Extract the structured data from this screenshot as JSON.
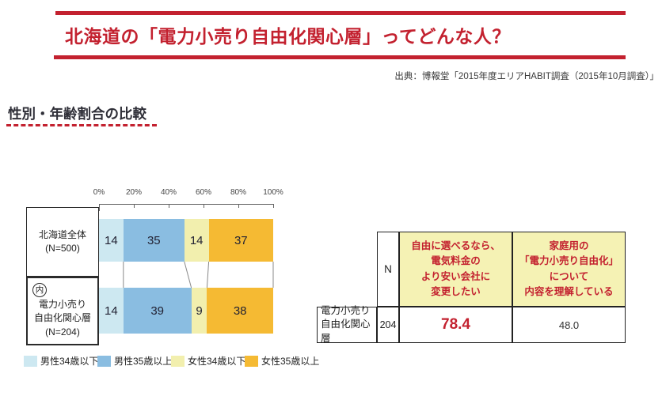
{
  "colors": {
    "accent_red": "#c3212f",
    "table_header_bg": "#f5f2b4",
    "connector_gray": "#888888"
  },
  "banner": {
    "title": "北海道の「電力小売り自由化関心層」ってどんな人？",
    "source": "出典：博報堂「2015年度エリアHABIT調査（2015年10月調査）」"
  },
  "section_heading": "性別・年齢割合の比較",
  "chart_data": {
    "type": "bar",
    "stacked": true,
    "orientation": "horizontal",
    "title": "性別・年齢割合の比較",
    "categories": [
      "北海道全体 (N=500)",
      "(内)電力小売り自由化関心層 (N=204)"
    ],
    "series": [
      {
        "name": "男性34歳以下",
        "color": "#cde8f1",
        "values": [
          14,
          14
        ]
      },
      {
        "name": "男性35歳以上",
        "color": "#8abde1",
        "values": [
          35,
          39
        ]
      },
      {
        "name": "女性34歳以下",
        "color": "#f2efae",
        "values": [
          14,
          9
        ]
      },
      {
        "name": "女性35歳以上",
        "color": "#f5ba33",
        "values": [
          37,
          38
        ]
      }
    ],
    "x_ticks": [
      "0%",
      "20%",
      "40%",
      "60%",
      "80%",
      "100%"
    ],
    "xlim": [
      0,
      100
    ],
    "legend_position": "bottom"
  },
  "chart_labels": {
    "row1": {
      "line1": "北海道全体",
      "line2": "(N=500)"
    },
    "row2": {
      "mark": "内",
      "line1": "電力小売り",
      "line2": "自由化関心層",
      "line3": "(N=204)"
    }
  },
  "table": {
    "n_header": "N",
    "col2_header": [
      "自由に選べるなら、",
      "電気料金の",
      "より安い会社に",
      "変更したい"
    ],
    "col3_header": [
      "家庭用の",
      "「電力小売り自由化」",
      "について",
      "内容を理解している"
    ],
    "row_label": [
      "電力小売り",
      "自由化関心層"
    ],
    "n_value": "204",
    "col2_value": "78.4",
    "col3_value": "48.0"
  }
}
